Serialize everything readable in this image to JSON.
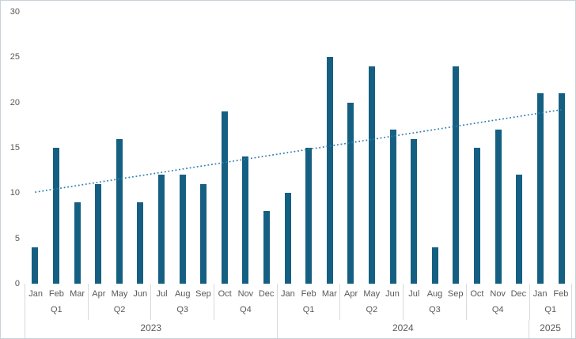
{
  "chart_data": {
    "type": "bar",
    "title": "",
    "categories": [
      "Jan 2023",
      "Feb 2023",
      "Mar 2023",
      "Apr 2023",
      "May 2023",
      "Jun 2023",
      "Jul 2023",
      "Aug 2023",
      "Sep 2023",
      "Oct 2023",
      "Nov 2023",
      "Dec 2023",
      "Jan 2024",
      "Feb 2024",
      "Mar 2024",
      "Apr 2024",
      "May 2024",
      "Jun 2024",
      "Jul 2024",
      "Aug 2024",
      "Sep 2024",
      "Oct 2024",
      "Nov 2024",
      "Dec 2024",
      "Jan 2025",
      "Feb 2025"
    ],
    "values": [
      4,
      15,
      9,
      11,
      16,
      9,
      12,
      12,
      11,
      19,
      14,
      8,
      10,
      15,
      25,
      20,
      24,
      17,
      16,
      4,
      24,
      15,
      17,
      12,
      21,
      21
    ],
    "xlabel": "",
    "ylabel": "",
    "y_ticks": [
      0,
      5,
      10,
      15,
      20,
      25,
      30
    ],
    "ylim": [
      0,
      30
    ],
    "grid": "off",
    "legend": "none",
    "trendline": {
      "style": "dotted",
      "start_value": 10.1,
      "end_value": 19.2
    }
  },
  "axis_hierarchy": {
    "years": [
      {
        "label": "2023",
        "quarters": [
          {
            "label": "Q1",
            "months": [
              "Jan",
              "Feb",
              "Mar"
            ]
          },
          {
            "label": "Q2",
            "months": [
              "Apr",
              "May",
              "Jun"
            ]
          },
          {
            "label": "Q3",
            "months": [
              "Jul",
              "Aug",
              "Sep"
            ]
          },
          {
            "label": "Q4",
            "months": [
              "Oct",
              "Nov",
              "Dec"
            ]
          }
        ]
      },
      {
        "label": "2024",
        "quarters": [
          {
            "label": "Q1",
            "months": [
              "Jan",
              "Feb",
              "Mar"
            ]
          },
          {
            "label": "Q2",
            "months": [
              "Apr",
              "May",
              "Jun"
            ]
          },
          {
            "label": "Q3",
            "months": [
              "Jul",
              "Aug",
              "Sep"
            ]
          },
          {
            "label": "Q4",
            "months": [
              "Oct",
              "Nov",
              "Dec"
            ]
          }
        ]
      },
      {
        "label": "2025",
        "quarters": [
          {
            "label": "Q1",
            "months": [
              "Jan",
              "Feb"
            ]
          }
        ]
      }
    ]
  },
  "colors": {
    "bar": "#156082",
    "trendline": "#2e7fac",
    "axis_text": "#595959",
    "divider": "#d9d9d9",
    "frame_border": "#c9d1d8",
    "background": "#ffffff"
  }
}
